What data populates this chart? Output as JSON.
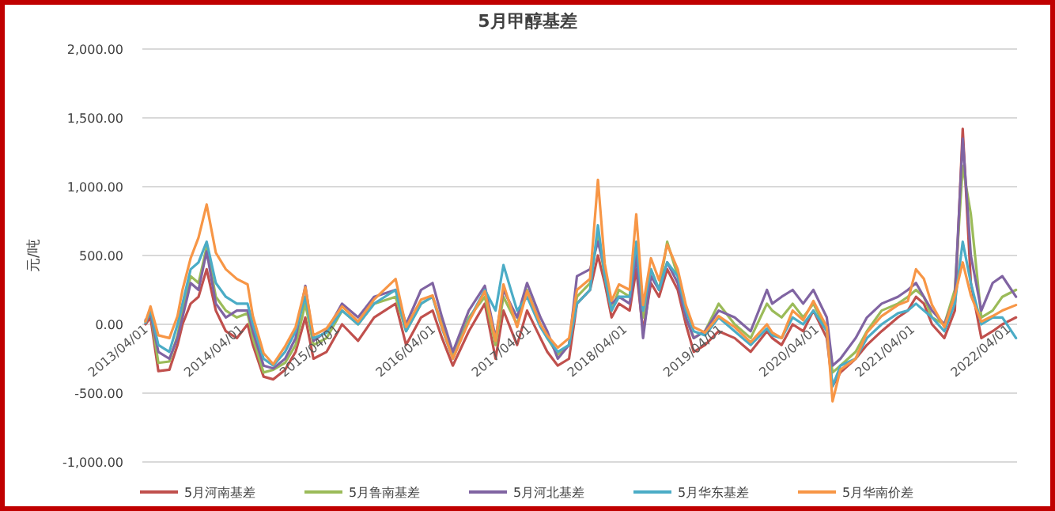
{
  "chart_data": {
    "type": "line",
    "title": "5月甲醇基差",
    "ylabel": "元/吨",
    "legend": "bottom",
    "grid": "y",
    "line_style": "solid",
    "x": [
      "2013-04-01",
      "2013-04-20",
      "2013-05-20",
      "2013-07-01",
      "2013-08-01",
      "2013-08-20",
      "2013-09-20",
      "2013-10-20",
      "2013-11-20",
      "2013-12-25",
      "2014-02-01",
      "2014-03-15",
      "2014-04-25",
      "2014-05-15",
      "2014-06-25",
      "2014-08-01",
      "2014-09-15",
      "2014-10-25",
      "2014-12-01",
      "2015-01-01",
      "2015-02-20",
      "2015-04-20",
      "2015-06-20",
      "2015-08-20",
      "2015-11-10",
      "2015-12-20",
      "2016-02-15",
      "2016-03-30",
      "2016-05-05",
      "2016-06-15",
      "2016-08-15",
      "2016-10-15",
      "2016-11-25",
      "2016-12-25",
      "2017-02-15",
      "2017-03-25",
      "2017-05-15",
      "2017-06-10",
      "2017-07-20",
      "2017-09-01",
      "2017-10-01",
      "2017-11-20",
      "2017-12-20",
      "2018-01-15",
      "2018-02-10",
      "2018-03-10",
      "2018-04-20",
      "2018-05-15",
      "2018-06-10",
      "2018-07-10",
      "2018-08-10",
      "2018-09-10",
      "2018-10-20",
      "2018-11-20",
      "2018-12-20",
      "2019-02-01",
      "2019-03-25",
      "2019-05-25",
      "2019-07-25",
      "2019-09-25",
      "2019-10-15",
      "2019-11-20",
      "2020-01-01",
      "2020-02-10",
      "2020-03-20",
      "2020-05-10",
      "2020-06-01",
      "2020-07-01",
      "2020-08-28",
      "2020-10-10",
      "2020-12-05",
      "2021-02-05",
      "2021-03-15",
      "2021-04-15",
      "2021-05-15",
      "2021-06-15",
      "2021-08-01",
      "2021-09-10",
      "2021-10-10",
      "2021-11-10",
      "2021-12-20",
      "2022-02-01",
      "2022-03-10",
      "2022-05-01"
    ],
    "xlim": [
      "2013-03-20",
      "2022-05-05"
    ],
    "xticks": [
      {
        "value": "2013-04-01",
        "label": "2013/04/01"
      },
      {
        "value": "2014-04-01",
        "label": "2014/04/01"
      },
      {
        "value": "2015-04-01",
        "label": "2015/04/01"
      },
      {
        "value": "2016-04-01",
        "label": "2016/04/01"
      },
      {
        "value": "2017-04-01",
        "label": "2017/04/01"
      },
      {
        "value": "2018-04-01",
        "label": "2018/04/01"
      },
      {
        "value": "2019-04-01",
        "label": "2019/04/01"
      },
      {
        "value": "2020-04-01",
        "label": "2020/04/01"
      },
      {
        "value": "2021-04-01",
        "label": "2021/04/01"
      },
      {
        "value": "2022-04-01",
        "label": "2022/04/01"
      }
    ],
    "ylim": [
      -1000,
      2000
    ],
    "yticks": [
      {
        "value": -1000,
        "label": "-1,000.00"
      },
      {
        "value": -500,
        "label": "-500.00"
      },
      {
        "value": 0,
        "label": "0.00"
      },
      {
        "value": 500,
        "label": "500.00"
      },
      {
        "value": 1000,
        "label": "1,000.00"
      },
      {
        "value": 1500,
        "label": "1,500.00"
      },
      {
        "value": 2000,
        "label": "2,000.00"
      }
    ],
    "series": [
      {
        "name": "5月河南基差",
        "color": "#c0504d",
        "values": [
          0,
          50,
          -340,
          -330,
          -150,
          0,
          150,
          200,
          400,
          100,
          -50,
          -100,
          0,
          -150,
          -380,
          -400,
          -330,
          -200,
          50,
          -250,
          -200,
          0,
          -120,
          50,
          150,
          -150,
          50,
          100,
          -100,
          -300,
          -50,
          150,
          -250,
          100,
          -150,
          100,
          -100,
          -200,
          -300,
          -250,
          150,
          250,
          500,
          300,
          50,
          150,
          100,
          400,
          -50,
          300,
          200,
          400,
          250,
          0,
          -200,
          -150,
          -50,
          -100,
          -200,
          -50,
          -100,
          -150,
          0,
          -50,
          100,
          -100,
          -450,
          -350,
          -250,
          -150,
          -50,
          50,
          100,
          200,
          150,
          0,
          -100,
          100,
          1420,
          300,
          -100,
          -50,
          0,
          50
        ]
      },
      {
        "name": "5月鲁南基差",
        "color": "#9bbb59",
        "values": [
          20,
          90,
          -280,
          -270,
          -80,
          100,
          350,
          300,
          560,
          200,
          100,
          50,
          80,
          -100,
          -350,
          -330,
          -280,
          -150,
          150,
          -150,
          -100,
          100,
          0,
          150,
          200,
          -50,
          150,
          200,
          0,
          -230,
          50,
          200,
          -150,
          200,
          0,
          250,
          0,
          -100,
          -220,
          -150,
          200,
          300,
          650,
          350,
          100,
          250,
          200,
          550,
          50,
          400,
          250,
          600,
          350,
          50,
          -100,
          -50,
          150,
          0,
          -100,
          150,
          100,
          50,
          150,
          50,
          150,
          -50,
          -350,
          -300,
          -200,
          -50,
          100,
          150,
          200,
          250,
          200,
          50,
          0,
          250,
          1150,
          800,
          50,
          100,
          200,
          250
        ]
      },
      {
        "name": "5月河北基差",
        "color": "#8064a2",
        "values": [
          30,
          80,
          -200,
          -250,
          -100,
          50,
          300,
          250,
          530,
          150,
          50,
          100,
          100,
          -50,
          -300,
          -320,
          -250,
          -100,
          280,
          -120,
          -50,
          150,
          50,
          200,
          250,
          0,
          250,
          300,
          50,
          -200,
          100,
          280,
          -100,
          250,
          50,
          300,
          50,
          -50,
          -250,
          -150,
          350,
          400,
          600,
          400,
          150,
          200,
          150,
          500,
          -100,
          350,
          250,
          450,
          300,
          50,
          -100,
          -50,
          100,
          50,
          -50,
          250,
          150,
          200,
          250,
          150,
          250,
          50,
          -300,
          -250,
          -100,
          50,
          150,
          200,
          250,
          300,
          200,
          100,
          0,
          200,
          1350,
          500,
          100,
          300,
          350,
          200
        ]
      },
      {
        "name": "5月华东基差",
        "color": "#4bacc6",
        "values": [
          10,
          100,
          -150,
          -200,
          0,
          150,
          400,
          450,
          600,
          300,
          200,
          150,
          150,
          0,
          -250,
          -300,
          -200,
          -50,
          200,
          -100,
          -60,
          100,
          0,
          150,
          250,
          -50,
          150,
          200,
          -30,
          -250,
          30,
          250,
          100,
          430,
          100,
          200,
          -20,
          -100,
          -200,
          -150,
          150,
          250,
          720,
          350,
          100,
          200,
          200,
          600,
          100,
          400,
          250,
          450,
          350,
          100,
          -50,
          -80,
          50,
          -50,
          -150,
          -30,
          -80,
          -100,
          50,
          0,
          100,
          -50,
          -450,
          -300,
          -250,
          -100,
          0,
          80,
          100,
          150,
          100,
          50,
          -50,
          150,
          600,
          300,
          0,
          50,
          50,
          -100
        ]
      },
      {
        "name": "5月华南价差",
        "color": "#f79646",
        "values": [
          20,
          130,
          -80,
          -100,
          60,
          250,
          480,
          630,
          870,
          520,
          400,
          330,
          290,
          60,
          -210,
          -290,
          -160,
          -20,
          270,
          -80,
          -30,
          130,
          20,
          180,
          330,
          -20,
          180,
          210,
          -20,
          -250,
          20,
          240,
          -120,
          290,
          -20,
          240,
          0,
          -80,
          -170,
          -100,
          250,
          330,
          1050,
          440,
          170,
          290,
          250,
          800,
          140,
          480,
          320,
          580,
          400,
          140,
          -20,
          -60,
          60,
          -20,
          -130,
          0,
          -60,
          -100,
          100,
          30,
          170,
          -20,
          -560,
          -330,
          -250,
          -60,
          60,
          140,
          170,
          400,
          330,
          140,
          -20,
          210,
          450,
          210,
          20,
          60,
          100,
          140
        ]
      }
    ]
  }
}
